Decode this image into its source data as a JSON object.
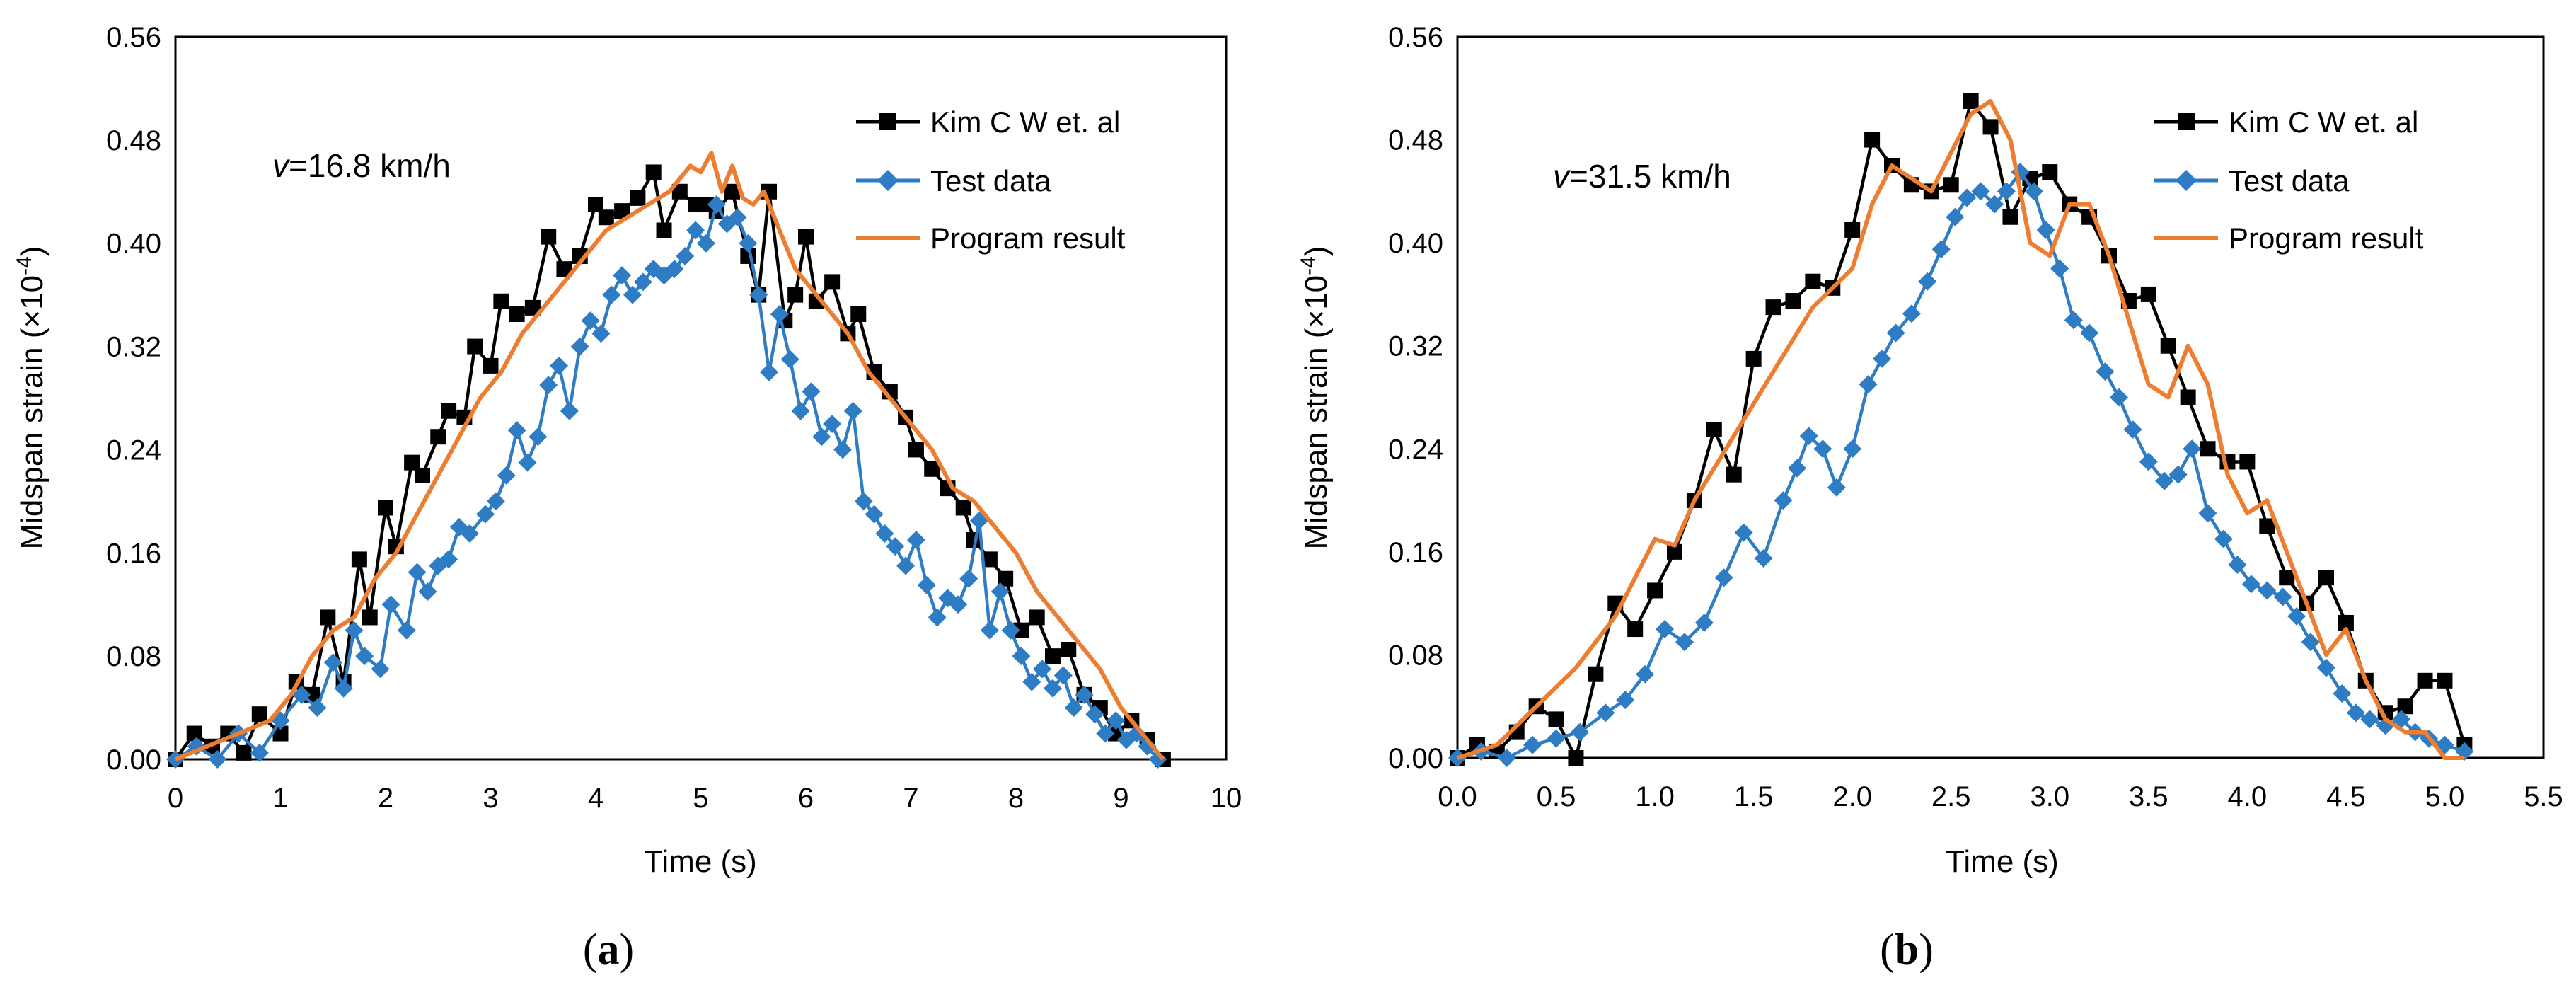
{
  "chart_data": [
    {
      "id": "a",
      "type": "line",
      "panel_label_open": "(",
      "panel_label_letter": "a",
      "panel_label_close": ")",
      "annotation_prefix": "v",
      "annotation_suffix": "=16.8 km/h",
      "xlabel": "Time (s)",
      "ylabel_main": "Midspan strain (×10",
      "ylabel_exp": "-4",
      "ylabel_close": ")",
      "xlim": [
        0,
        10
      ],
      "ylim": [
        0,
        0.56
      ],
      "xticks": [
        0,
        1,
        2,
        3,
        4,
        5,
        6,
        7,
        8,
        9,
        10
      ],
      "xtick_labels": [
        "0",
        "1",
        "2",
        "3",
        "4",
        "5",
        "6",
        "7",
        "8",
        "9",
        "10"
      ],
      "yticks": [
        0,
        0.08,
        0.16,
        0.24,
        0.32,
        0.4,
        0.48,
        0.56
      ],
      "ytick_labels": [
        "0.00",
        "0.08",
        "0.16",
        "0.24",
        "0.32",
        "0.40",
        "0.48",
        "0.56"
      ],
      "legend_position": "top-right",
      "series": [
        {
          "name": "Kim C W et. al",
          "color": "#000000",
          "marker": "square",
          "x": [
            0,
            0.18,
            0.35,
            0.5,
            0.65,
            0.8,
            1.0,
            1.15,
            1.3,
            1.45,
            1.6,
            1.75,
            1.85,
            2.0,
            2.1,
            2.25,
            2.35,
            2.5,
            2.6,
            2.75,
            2.85,
            3.0,
            3.1,
            3.25,
            3.4,
            3.55,
            3.7,
            3.85,
            4.0,
            4.1,
            4.25,
            4.4,
            4.55,
            4.65,
            4.8,
            4.95,
            5.05,
            5.15,
            5.3,
            5.45,
            5.55,
            5.65,
            5.8,
            5.9,
            6.0,
            6.1,
            6.25,
            6.4,
            6.5,
            6.65,
            6.8,
            6.95,
            7.05,
            7.2,
            7.35,
            7.5,
            7.6,
            7.75,
            7.9,
            8.05,
            8.2,
            8.35,
            8.5,
            8.65,
            8.8,
            8.95,
            9.1,
            9.25,
            9.4
          ],
          "values": [
            0.0,
            0.02,
            0.01,
            0.02,
            0.005,
            0.035,
            0.02,
            0.06,
            0.05,
            0.11,
            0.06,
            0.155,
            0.11,
            0.195,
            0.165,
            0.23,
            0.22,
            0.25,
            0.27,
            0.265,
            0.32,
            0.305,
            0.355,
            0.345,
            0.35,
            0.405,
            0.38,
            0.39,
            0.43,
            0.42,
            0.425,
            0.435,
            0.455,
            0.41,
            0.44,
            0.43,
            0.43,
            0.425,
            0.44,
            0.39,
            0.36,
            0.44,
            0.34,
            0.36,
            0.405,
            0.355,
            0.37,
            0.33,
            0.345,
            0.3,
            0.285,
            0.265,
            0.24,
            0.225,
            0.21,
            0.195,
            0.17,
            0.155,
            0.14,
            0.1,
            0.11,
            0.08,
            0.085,
            0.05,
            0.04,
            0.02,
            0.03,
            0.015,
            0.0
          ]
        },
        {
          "name": "Test data",
          "color": "#2E7CC4",
          "marker": "diamond",
          "x": [
            0,
            0.2,
            0.4,
            0.6,
            0.8,
            1.0,
            1.2,
            1.35,
            1.5,
            1.6,
            1.7,
            1.8,
            1.95,
            2.05,
            2.2,
            2.3,
            2.4,
            2.5,
            2.6,
            2.7,
            2.8,
            2.95,
            3.05,
            3.15,
            3.25,
            3.35,
            3.45,
            3.55,
            3.65,
            3.75,
            3.85,
            3.95,
            4.05,
            4.15,
            4.25,
            4.35,
            4.45,
            4.55,
            4.65,
            4.75,
            4.85,
            4.95,
            5.05,
            5.15,
            5.25,
            5.35,
            5.45,
            5.55,
            5.65,
            5.75,
            5.85,
            5.95,
            6.05,
            6.15,
            6.25,
            6.35,
            6.45,
            6.55,
            6.65,
            6.75,
            6.85,
            6.95,
            7.05,
            7.15,
            7.25,
            7.35,
            7.45,
            7.55,
            7.65,
            7.75,
            7.85,
            7.95,
            8.05,
            8.15,
            8.25,
            8.35,
            8.45,
            8.55,
            8.65,
            8.75,
            8.85,
            8.95,
            9.05,
            9.15,
            9.25,
            9.35
          ],
          "values": [
            0.0,
            0.01,
            0.0,
            0.02,
            0.005,
            0.03,
            0.05,
            0.04,
            0.075,
            0.055,
            0.1,
            0.08,
            0.07,
            0.12,
            0.1,
            0.145,
            0.13,
            0.15,
            0.155,
            0.18,
            0.175,
            0.19,
            0.2,
            0.22,
            0.255,
            0.23,
            0.25,
            0.29,
            0.305,
            0.27,
            0.32,
            0.34,
            0.33,
            0.36,
            0.375,
            0.36,
            0.37,
            0.38,
            0.375,
            0.38,
            0.39,
            0.41,
            0.4,
            0.43,
            0.415,
            0.42,
            0.4,
            0.36,
            0.3,
            0.345,
            0.31,
            0.27,
            0.285,
            0.25,
            0.26,
            0.24,
            0.27,
            0.2,
            0.19,
            0.175,
            0.165,
            0.15,
            0.17,
            0.135,
            0.11,
            0.125,
            0.12,
            0.14,
            0.185,
            0.1,
            0.13,
            0.1,
            0.08,
            0.06,
            0.07,
            0.055,
            0.065,
            0.04,
            0.05,
            0.035,
            0.02,
            0.03,
            0.015,
            0.02,
            0.01,
            0.0
          ]
        },
        {
          "name": "Program result",
          "color": "#ED7D31",
          "marker": "none",
          "x": [
            0,
            0.3,
            0.6,
            0.9,
            1.1,
            1.3,
            1.5,
            1.7,
            1.9,
            2.1,
            2.3,
            2.5,
            2.7,
            2.9,
            3.1,
            3.3,
            3.5,
            3.7,
            3.9,
            4.1,
            4.3,
            4.5,
            4.7,
            4.9,
            5.0,
            5.1,
            5.2,
            5.3,
            5.4,
            5.5,
            5.6,
            5.7,
            5.8,
            5.9,
            6.0,
            6.2,
            6.4,
            6.6,
            6.8,
            7.0,
            7.2,
            7.4,
            7.6,
            7.8,
            8.0,
            8.2,
            8.4,
            8.6,
            8.8,
            9.0,
            9.2,
            9.4
          ],
          "values": [
            0.0,
            0.01,
            0.02,
            0.03,
            0.05,
            0.08,
            0.1,
            0.11,
            0.14,
            0.16,
            0.19,
            0.22,
            0.25,
            0.28,
            0.3,
            0.33,
            0.35,
            0.37,
            0.39,
            0.41,
            0.42,
            0.43,
            0.44,
            0.46,
            0.455,
            0.47,
            0.44,
            0.46,
            0.435,
            0.43,
            0.44,
            0.42,
            0.4,
            0.38,
            0.37,
            0.35,
            0.33,
            0.3,
            0.28,
            0.26,
            0.24,
            0.21,
            0.2,
            0.18,
            0.16,
            0.13,
            0.11,
            0.09,
            0.07,
            0.04,
            0.02,
            0.0
          ]
        }
      ]
    },
    {
      "id": "b",
      "type": "line",
      "panel_label_open": "(",
      "panel_label_letter": "b",
      "panel_label_close": ")",
      "annotation_prefix": "v",
      "annotation_suffix": "=31.5 km/h",
      "xlabel": "Time (s)",
      "ylabel_main": "Midspan strain (×10",
      "ylabel_exp": "-4",
      "ylabel_close": ")",
      "xlim": [
        0,
        5.5
      ],
      "ylim": [
        0,
        0.56
      ],
      "xticks": [
        0,
        0.5,
        1.0,
        1.5,
        2.0,
        2.5,
        3.0,
        3.5,
        4.0,
        4.5,
        5.0,
        5.5
      ],
      "xtick_labels": [
        "0.0",
        "0.5",
        "1.0",
        "1.5",
        "2.0",
        "2.5",
        "3.0",
        "3.5",
        "4.0",
        "4.5",
        "5.0",
        "5.5"
      ],
      "yticks": [
        0,
        0.08,
        0.16,
        0.24,
        0.32,
        0.4,
        0.48,
        0.56
      ],
      "ytick_labels": [
        "0.00",
        "0.08",
        "0.16",
        "0.24",
        "0.32",
        "0.40",
        "0.48",
        "0.56"
      ],
      "legend_position": "top-right",
      "series": [
        {
          "name": "Kim C W et. al",
          "color": "#000000",
          "marker": "square",
          "x": [
            0,
            0.1,
            0.2,
            0.3,
            0.4,
            0.5,
            0.6,
            0.7,
            0.8,
            0.9,
            1.0,
            1.1,
            1.2,
            1.3,
            1.4,
            1.5,
            1.6,
            1.7,
            1.8,
            1.9,
            2.0,
            2.1,
            2.2,
            2.3,
            2.4,
            2.5,
            2.6,
            2.7,
            2.8,
            2.9,
            3.0,
            3.1,
            3.2,
            3.3,
            3.4,
            3.5,
            3.6,
            3.7,
            3.8,
            3.9,
            4.0,
            4.1,
            4.2,
            4.3,
            4.4,
            4.5,
            4.6,
            4.7,
            4.8,
            4.9,
            5.0,
            5.1
          ],
          "values": [
            0.0,
            0.01,
            0.005,
            0.02,
            0.04,
            0.03,
            0.0,
            0.065,
            0.12,
            0.1,
            0.13,
            0.16,
            0.2,
            0.255,
            0.22,
            0.31,
            0.35,
            0.355,
            0.37,
            0.365,
            0.41,
            0.48,
            0.46,
            0.445,
            0.44,
            0.445,
            0.51,
            0.49,
            0.42,
            0.45,
            0.455,
            0.43,
            0.42,
            0.39,
            0.355,
            0.36,
            0.32,
            0.28,
            0.24,
            0.23,
            0.23,
            0.18,
            0.14,
            0.12,
            0.14,
            0.105,
            0.06,
            0.035,
            0.04,
            0.06,
            0.06,
            0.01
          ]
        },
        {
          "name": "Test data",
          "color": "#2E7CC4",
          "marker": "diamond",
          "x": [
            0,
            0.12,
            0.25,
            0.38,
            0.5,
            0.62,
            0.75,
            0.85,
            0.95,
            1.05,
            1.15,
            1.25,
            1.35,
            1.45,
            1.55,
            1.65,
            1.72,
            1.78,
            1.85,
            1.92,
            2.0,
            2.08,
            2.15,
            2.22,
            2.3,
            2.38,
            2.45,
            2.52,
            2.58,
            2.65,
            2.72,
            2.78,
            2.85,
            2.92,
            2.98,
            3.05,
            3.12,
            3.2,
            3.28,
            3.35,
            3.42,
            3.5,
            3.58,
            3.65,
            3.72,
            3.8,
            3.88,
            3.95,
            4.02,
            4.1,
            4.18,
            4.25,
            4.32,
            4.4,
            4.48,
            4.55,
            4.62,
            4.7,
            4.78,
            4.85,
            4.92,
            5.0,
            5.1
          ],
          "values": [
            0.0,
            0.005,
            0.0,
            0.01,
            0.015,
            0.02,
            0.035,
            0.045,
            0.065,
            0.1,
            0.09,
            0.105,
            0.14,
            0.175,
            0.155,
            0.2,
            0.225,
            0.25,
            0.24,
            0.21,
            0.24,
            0.29,
            0.31,
            0.33,
            0.345,
            0.37,
            0.395,
            0.42,
            0.435,
            0.44,
            0.43,
            0.44,
            0.455,
            0.44,
            0.41,
            0.38,
            0.34,
            0.33,
            0.3,
            0.28,
            0.255,
            0.23,
            0.215,
            0.22,
            0.24,
            0.19,
            0.17,
            0.15,
            0.135,
            0.13,
            0.125,
            0.11,
            0.09,
            0.07,
            0.05,
            0.035,
            0.03,
            0.025,
            0.03,
            0.02,
            0.015,
            0.01,
            0.005
          ]
        },
        {
          "name": "Program result",
          "color": "#ED7D31",
          "marker": "none",
          "x": [
            0,
            0.2,
            0.4,
            0.6,
            0.8,
            1.0,
            1.1,
            1.2,
            1.4,
            1.6,
            1.8,
            2.0,
            2.1,
            2.2,
            2.3,
            2.4,
            2.5,
            2.6,
            2.7,
            2.8,
            2.9,
            3.0,
            3.1,
            3.2,
            3.3,
            3.4,
            3.5,
            3.6,
            3.7,
            3.8,
            3.9,
            4.0,
            4.1,
            4.2,
            4.3,
            4.4,
            4.5,
            4.6,
            4.7,
            4.8,
            4.9,
            5.0,
            5.1
          ],
          "values": [
            0.0,
            0.01,
            0.04,
            0.07,
            0.11,
            0.17,
            0.165,
            0.2,
            0.25,
            0.3,
            0.35,
            0.38,
            0.43,
            0.46,
            0.45,
            0.44,
            0.47,
            0.5,
            0.51,
            0.48,
            0.4,
            0.39,
            0.43,
            0.43,
            0.39,
            0.34,
            0.29,
            0.28,
            0.32,
            0.29,
            0.22,
            0.19,
            0.2,
            0.16,
            0.12,
            0.08,
            0.1,
            0.06,
            0.03,
            0.02,
            0.02,
            0.0,
            0.0
          ]
        }
      ]
    }
  ]
}
